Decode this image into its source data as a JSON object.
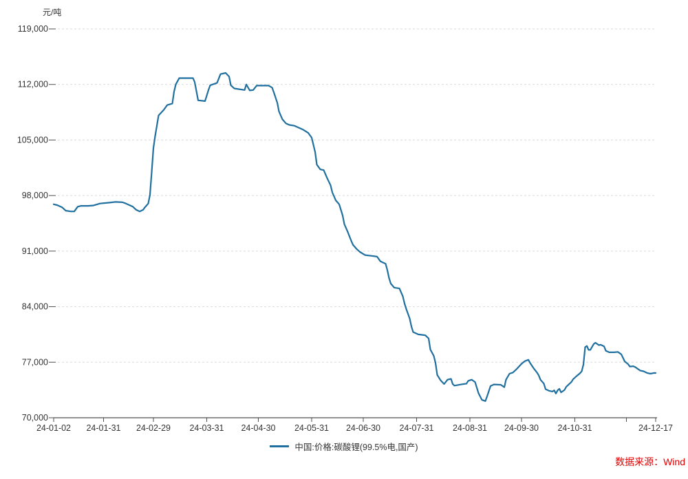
{
  "chart_data": {
    "type": "line",
    "title": "",
    "unit_label": "元/吨",
    "xlabel": "",
    "ylabel": "元/吨",
    "ylim": [
      70000,
      119000
    ],
    "yticks": [
      70000,
      77000,
      84000,
      91000,
      98000,
      105000,
      112000,
      119000
    ],
    "xlim_days": [
      0,
      350
    ],
    "xticks": [
      {
        "d": 0,
        "label": "24-01-02"
      },
      {
        "d": 29,
        "label": "24-01-31"
      },
      {
        "d": 58,
        "label": "24-02-29"
      },
      {
        "d": 89,
        "label": "24-03-31"
      },
      {
        "d": 119,
        "label": "24-04-30"
      },
      {
        "d": 150,
        "label": "24-05-31"
      },
      {
        "d": 180,
        "label": "24-06-30"
      },
      {
        "d": 211,
        "label": "24-07-31"
      },
      {
        "d": 242,
        "label": "24-08-31"
      },
      {
        "d": 272,
        "label": "24-09-30"
      },
      {
        "d": 303,
        "label": "24-10-31"
      },
      {
        "d": 333,
        "label": ""
      },
      {
        "d": 350,
        "label": "24-12-17"
      }
    ],
    "grid": "horizontal-dashed",
    "legend_position": "bottom-center",
    "source": "数据来源：Wind",
    "colors": {
      "line": "#1f6f9f",
      "source": "#e60000",
      "grid": "#d9d9d9",
      "axis": "#4d4d4d",
      "tick_text": "#333333"
    },
    "series": [
      {
        "name": "中国:价格:碳酸锂(99.5%电,国产)",
        "color": "#1f6f9f",
        "points": [
          [
            0,
            96900
          ],
          [
            2,
            96800
          ],
          [
            5,
            96500
          ],
          [
            7,
            96100
          ],
          [
            10,
            96000
          ],
          [
            12,
            96000
          ],
          [
            13,
            96300
          ],
          [
            14,
            96600
          ],
          [
            16,
            96700
          ],
          [
            20,
            96700
          ],
          [
            23,
            96750
          ],
          [
            27,
            97000
          ],
          [
            32,
            97100
          ],
          [
            36,
            97200
          ],
          [
            40,
            97150
          ],
          [
            42,
            97000
          ],
          [
            46,
            96600
          ],
          [
            48,
            96200
          ],
          [
            50,
            96000
          ],
          [
            52,
            96200
          ],
          [
            53,
            96500
          ],
          [
            55,
            97000
          ],
          [
            56,
            98100
          ],
          [
            57,
            101000
          ],
          [
            58,
            104000
          ],
          [
            59,
            105500
          ],
          [
            60,
            106800
          ],
          [
            61,
            108100
          ],
          [
            64,
            108800
          ],
          [
            66,
            109400
          ],
          [
            69,
            109600
          ],
          [
            70,
            111100
          ],
          [
            71,
            112000
          ],
          [
            73,
            112800
          ],
          [
            81,
            112800
          ],
          [
            82,
            112300
          ],
          [
            84,
            110000
          ],
          [
            88,
            109900
          ],
          [
            90,
            111300
          ],
          [
            91,
            111900
          ],
          [
            95,
            112200
          ],
          [
            97,
            113300
          ],
          [
            100,
            113450
          ],
          [
            102,
            113000
          ],
          [
            103,
            111900
          ],
          [
            105,
            111500
          ],
          [
            111,
            111300
          ],
          [
            112,
            112000
          ],
          [
            114,
            111250
          ],
          [
            116,
            111300
          ],
          [
            118,
            111850
          ],
          [
            125,
            111850
          ],
          [
            127,
            111600
          ],
          [
            128,
            111000
          ],
          [
            130,
            109700
          ],
          [
            131,
            108600
          ],
          [
            133,
            107600
          ],
          [
            135,
            107100
          ],
          [
            137,
            106900
          ],
          [
            140,
            106800
          ],
          [
            145,
            106300
          ],
          [
            148,
            105900
          ],
          [
            150,
            105300
          ],
          [
            152,
            103500
          ],
          [
            153,
            101900
          ],
          [
            155,
            101300
          ],
          [
            157,
            101200
          ],
          [
            159,
            100200
          ],
          [
            161,
            99300
          ],
          [
            162,
            98400
          ],
          [
            164,
            97400
          ],
          [
            166,
            96900
          ],
          [
            168,
            95500
          ],
          [
            169,
            94400
          ],
          [
            171,
            93400
          ],
          [
            173,
            92300
          ],
          [
            174,
            91800
          ],
          [
            176,
            91300
          ],
          [
            178,
            90900
          ],
          [
            181,
            90500
          ],
          [
            185,
            90400
          ],
          [
            188,
            90300
          ],
          [
            190,
            89700
          ],
          [
            193,
            89400
          ],
          [
            194,
            88600
          ],
          [
            195,
            87600
          ],
          [
            196,
            86900
          ],
          [
            198,
            86400
          ],
          [
            201,
            86300
          ],
          [
            203,
            85300
          ],
          [
            204,
            84400
          ],
          [
            205,
            83700
          ],
          [
            207,
            82500
          ],
          [
            208,
            81500
          ],
          [
            209,
            80800
          ],
          [
            212,
            80500
          ],
          [
            216,
            80400
          ],
          [
            218,
            80000
          ],
          [
            219,
            78600
          ],
          [
            221,
            77800
          ],
          [
            222,
            76900
          ],
          [
            223,
            75400
          ],
          [
            225,
            74700
          ],
          [
            227,
            74250
          ],
          [
            229,
            74800
          ],
          [
            231,
            74900
          ],
          [
            232,
            74250
          ],
          [
            233,
            74050
          ],
          [
            237,
            74200
          ],
          [
            240,
            74300
          ],
          [
            241,
            74650
          ],
          [
            243,
            74800
          ],
          [
            245,
            74500
          ],
          [
            246,
            73800
          ],
          [
            247,
            73100
          ],
          [
            249,
            72250
          ],
          [
            251,
            72100
          ],
          [
            252,
            72700
          ],
          [
            254,
            74000
          ],
          [
            256,
            74200
          ],
          [
            260,
            74150
          ],
          [
            262,
            73850
          ],
          [
            263,
            74800
          ],
          [
            265,
            75550
          ],
          [
            267,
            75700
          ],
          [
            269,
            76100
          ],
          [
            272,
            76800
          ],
          [
            274,
            77150
          ],
          [
            276,
            77300
          ],
          [
            277,
            76900
          ],
          [
            279,
            76250
          ],
          [
            281,
            75700
          ],
          [
            282,
            75350
          ],
          [
            283,
            74800
          ],
          [
            285,
            74300
          ],
          [
            286,
            73600
          ],
          [
            288,
            73400
          ],
          [
            290,
            73300
          ],
          [
            291,
            73450
          ],
          [
            292,
            73050
          ],
          [
            293,
            73450
          ],
          [
            294,
            73650
          ],
          [
            295,
            73200
          ],
          [
            297,
            73500
          ],
          [
            298,
            73900
          ],
          [
            299,
            74100
          ],
          [
            301,
            74500
          ],
          [
            302,
            74850
          ],
          [
            304,
            75250
          ],
          [
            306,
            75600
          ],
          [
            307,
            75850
          ],
          [
            308,
            76700
          ],
          [
            309,
            78900
          ],
          [
            310,
            79050
          ],
          [
            311,
            78550
          ],
          [
            312,
            78550
          ],
          [
            314,
            79300
          ],
          [
            315,
            79450
          ],
          [
            317,
            79150
          ],
          [
            318,
            79200
          ],
          [
            320,
            79000
          ],
          [
            321,
            78450
          ],
          [
            323,
            78250
          ],
          [
            326,
            78250
          ],
          [
            328,
            78300
          ],
          [
            330,
            78000
          ],
          [
            331,
            77550
          ],
          [
            332,
            77100
          ],
          [
            334,
            76750
          ],
          [
            335,
            76450
          ],
          [
            337,
            76500
          ],
          [
            338,
            76400
          ],
          [
            340,
            76100
          ],
          [
            341,
            75950
          ],
          [
            343,
            75850
          ],
          [
            345,
            75650
          ],
          [
            347,
            75550
          ],
          [
            349,
            75650
          ],
          [
            350,
            75640
          ]
        ]
      }
    ]
  }
}
